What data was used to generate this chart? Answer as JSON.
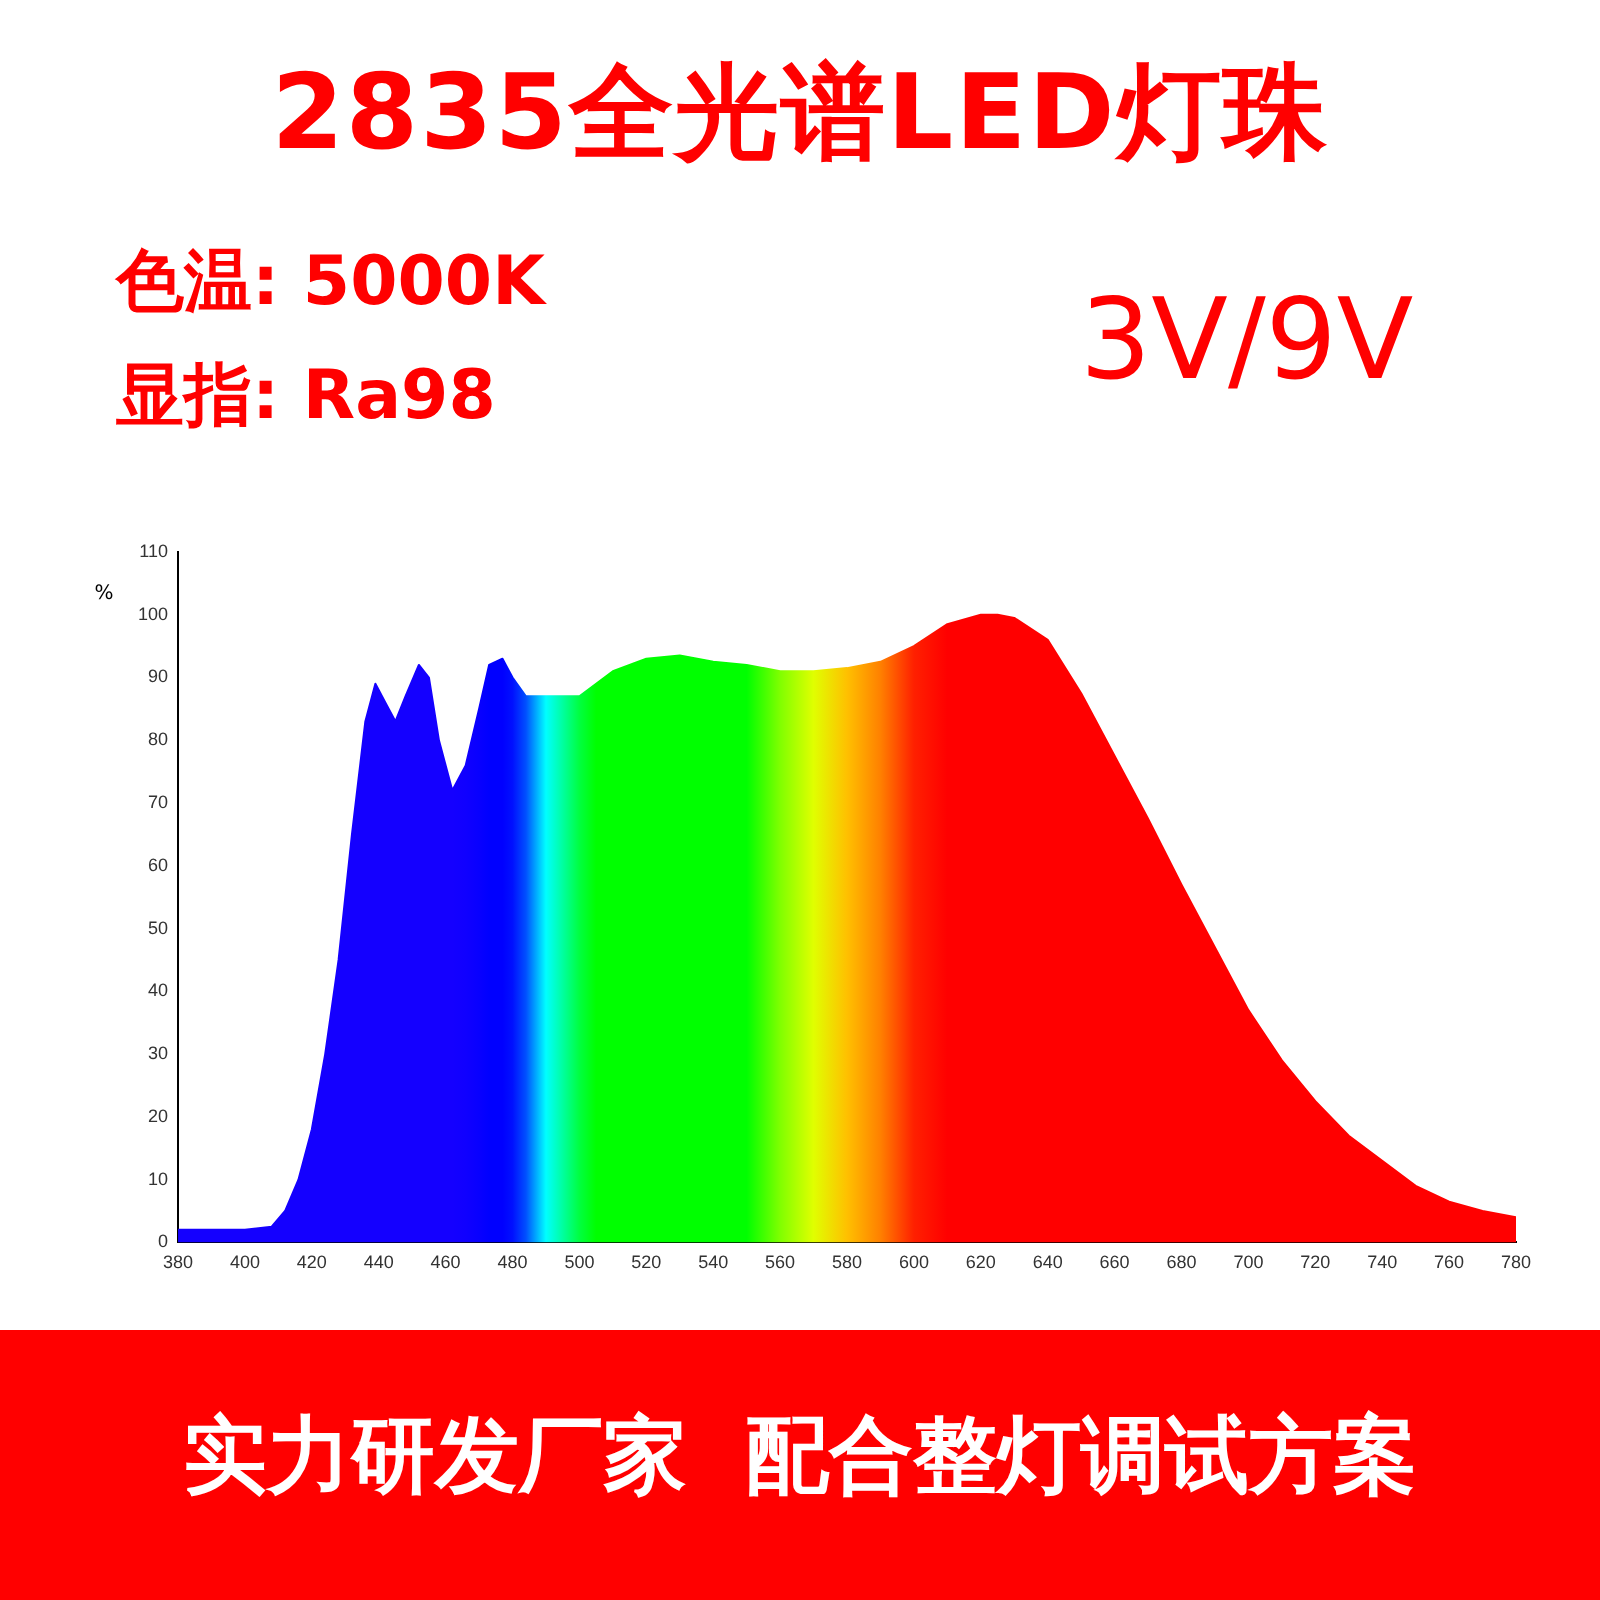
{
  "chart_data": {
    "type": "area",
    "title": "2835全光谱LED灯珠",
    "ylabel": "%",
    "annotations": [
      "色温: 5000K",
      "显指: Ra98",
      "3V/9V",
      "实力研发厂家  配合整灯调试方案"
    ],
    "xlim": [
      380,
      780
    ],
    "xticks": [
      380,
      400,
      420,
      440,
      460,
      480,
      500,
      520,
      540,
      560,
      580,
      600,
      620,
      640,
      660,
      680,
      700,
      720,
      740,
      760,
      780
    ],
    "ylim": [
      0,
      110
    ],
    "yticks": [
      0,
      10,
      20,
      30,
      40,
      50,
      60,
      70,
      80,
      90,
      100,
      110
    ],
    "x": [
      380,
      400,
      408,
      412,
      416,
      420,
      424,
      428,
      432,
      436,
      439,
      442,
      445,
      448,
      452,
      455,
      458,
      462,
      466,
      470,
      473,
      477,
      480,
      484,
      490,
      500,
      505,
      510,
      520,
      530,
      540,
      550,
      560,
      570,
      580,
      590,
      600,
      610,
      620,
      625,
      630,
      640,
      650,
      660,
      670,
      680,
      690,
      700,
      710,
      720,
      730,
      740,
      750,
      760,
      770,
      780
    ],
    "series": [
      {
        "values": [
          2,
          2,
          2.5,
          5,
          10,
          18,
          30,
          45,
          65,
          83,
          89,
          86,
          83,
          87,
          92,
          90,
          80,
          72,
          76,
          85,
          92,
          93,
          90,
          87,
          87,
          87,
          89,
          91,
          93,
          93.5,
          92.5,
          92,
          91,
          91,
          91.5,
          92.5,
          95,
          98.5,
          100,
          100,
          99.5,
          96,
          87.5,
          77.5,
          67.5,
          57,
          47,
          37,
          29,
          22.5,
          17,
          13,
          9,
          6.5,
          5,
          4
        ],
        "colors": [
          "#1400ff",
          "#1400ff",
          "#1400ff",
          "#1400ff",
          "#1400ff",
          "#1400ff",
          "#1400ff",
          "#1400ff",
          "#1400ff",
          "#1400ff",
          "#1400ff",
          "#1400ff",
          "#1400ff",
          "#1400ff",
          "#1400ff",
          "#1400ff",
          "#1400ff",
          "#1400ff",
          "#1000ff",
          "#0800ff",
          "#0000ff",
          "#0000ff",
          "#0010ff",
          "#0050ff",
          "#00ffff",
          "#00ff40",
          "#00ff00",
          "#00ff00",
          "#00ff00",
          "#00ff00",
          "#00ff00",
          "#00ff00",
          "#80ff00",
          "#e0ff00",
          "#ffc000",
          "#ff8000",
          "#ff2000",
          "#ff0000",
          "#ff0000",
          "#ff0000",
          "#ff0000",
          "#ff0000",
          "#ff0000",
          "#ff0000",
          "#ff0000",
          "#ff0000",
          "#ff0000",
          "#ff0000",
          "#ff0000",
          "#ff0000",
          "#ff0000",
          "#ff0000",
          "#ff0000",
          "#ff0000",
          "#ff0000",
          "#ff0000"
        ]
      }
    ]
  }
}
